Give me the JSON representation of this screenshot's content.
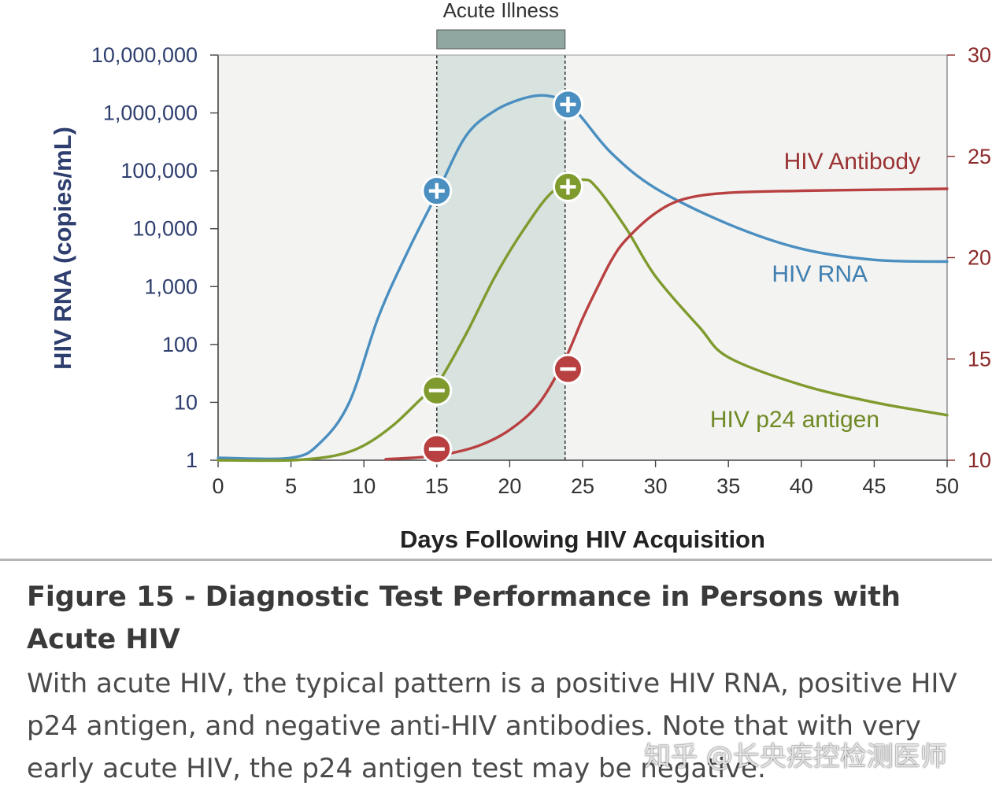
{
  "chart_data": {
    "type": "line",
    "banner": "Acute Illness",
    "xlabel": "Days Following HIV Acquisition",
    "ylabel": "HIV RNA (copies/mL)",
    "xlim": [
      0,
      50
    ],
    "ylim": [
      1,
      10000000
    ],
    "yscale": "log",
    "x_ticks": [
      "0",
      "5",
      "10",
      "15",
      "20",
      "25",
      "30",
      "35",
      "40",
      "45",
      "50"
    ],
    "y_ticks": [
      "1",
      "10",
      "100",
      "1,000",
      "10,000",
      "100,000",
      "1,000,000",
      "10,000,000"
    ],
    "y2_ticks": [
      "10",
      "15",
      "20",
      "25",
      "30"
    ],
    "acute_window": [
      15,
      23.8
    ],
    "series": [
      {
        "name": "HIV RNA",
        "color": "#4a8fc0",
        "x": [
          0,
          5,
          7,
          9,
          11,
          13,
          15,
          17,
          19,
          21,
          22.5,
          24,
          25,
          27,
          30,
          35,
          40,
          45,
          50
        ],
        "y": [
          1.1,
          1.1,
          2,
          10,
          300,
          4000,
          40000,
          400000,
          1100000,
          1800000,
          2000000,
          1500000,
          800000,
          200000,
          50000,
          12000,
          4500,
          2900,
          2700
        ]
      },
      {
        "name": "HIV p24 antigen",
        "color": "#7f9a2d",
        "x": [
          0,
          5,
          8,
          10,
          12,
          14,
          15,
          17,
          19,
          21,
          23,
          25,
          26,
          28,
          30,
          33,
          35,
          40,
          45,
          50
        ],
        "y": [
          1,
          1,
          1.2,
          1.8,
          4,
          12,
          20,
          150,
          1500,
          10000,
          45000,
          70000,
          50000,
          10000,
          1500,
          200,
          60,
          20,
          10,
          6
        ]
      },
      {
        "name": "HIV Antibody",
        "color": "#b84040",
        "x": [
          11.5,
          14,
          16,
          18,
          20,
          22,
          23.8,
          25,
          26,
          27,
          28,
          30,
          32,
          35,
          40,
          45,
          50
        ],
        "y": [
          10.05,
          10.15,
          10.35,
          10.75,
          11.5,
          12.8,
          15,
          17,
          18.5,
          19.9,
          20.9,
          22.2,
          22.9,
          23.2,
          23.3,
          23.35,
          23.4
        ]
      }
    ],
    "markers": [
      {
        "series": "HIV RNA",
        "x": 15,
        "y": 45000,
        "sign": "+"
      },
      {
        "series": "HIV RNA",
        "x": 24,
        "y": 1400000,
        "sign": "+"
      },
      {
        "series": "HIV p24 antigen",
        "x": 15,
        "y": 16,
        "sign": "-"
      },
      {
        "series": "HIV p24 antigen",
        "x": 24,
        "y": 53000,
        "sign": "+"
      },
      {
        "series": "HIV Antibody",
        "x": 15,
        "y": 10.55,
        "sign": "-"
      },
      {
        "series": "HIV Antibody",
        "x": 24,
        "y": 14.5,
        "sign": "-"
      }
    ]
  },
  "caption": {
    "title": "Figure 15 - Diagnostic Test Performance in Persons with Acute HIV",
    "body": "With acute HIV, the typical pattern is a positive HIV RNA, positive HIV p24 antigen, and negative anti-HIV antibodies. Note that with very early acute HIV, the p24 antigen test may be negative."
  },
  "watermark": "知乎 @长央疾控检测医师",
  "colors": {
    "plot_bg": "#f3f3f2",
    "acute_band": "#d8e2df",
    "banner_fill": "#8fa6a1",
    "left_axis": "#2e3e6e",
    "right_axis": "#8b2a2a"
  }
}
